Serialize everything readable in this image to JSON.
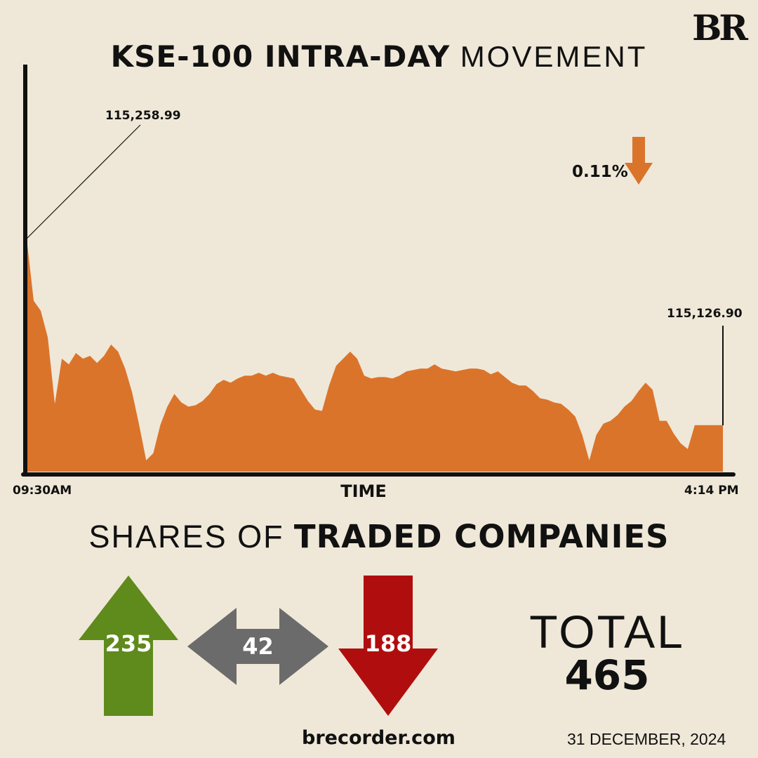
{
  "header": {
    "title_bold": "KSE-100 INTRA-DAY",
    "title_light": "MOVEMENT",
    "logo": "BR"
  },
  "chart_data": {
    "type": "area",
    "title": "KSE-100 INTRA-DAY MOVEMENT",
    "xlabel": "TIME",
    "ylabel": "",
    "x_start_label": "09:30AM",
    "x_end_label": "4:14 PM",
    "ylim": [
      115094,
      115258.99
    ],
    "high_label": "115,258.99",
    "close_label": "115,126.90",
    "change_label": "0.11%",
    "change_direction": "down",
    "grid": false,
    "values": [
      115258.99,
      115215,
      115208,
      115189,
      115142,
      115174,
      115170,
      115178,
      115174,
      115176,
      115171,
      115176,
      115184,
      115179,
      115167,
      115150,
      115127,
      115102,
      115107,
      115127,
      115140,
      115149,
      115143,
      115140,
      115141,
      115144,
      115149,
      115156,
      115159,
      115157,
      115160,
      115162,
      115162,
      115164,
      115162,
      115164,
      115162,
      115161,
      115160,
      115152,
      115144,
      115138,
      115137,
      115155,
      115169,
      115174,
      115179,
      115174,
      115162,
      115160,
      115161,
      115161,
      115160,
      115162,
      115165,
      115166,
      115167,
      115167,
      115170,
      115167,
      115166,
      115165,
      115166,
      115167,
      115167,
      115166,
      115163,
      115165,
      115161,
      115157,
      115155,
      115155,
      115151,
      115146,
      115145,
      115143,
      115142,
      115138,
      115133,
      115120,
      115102,
      115120,
      115128,
      115130,
      115134,
      115140,
      115144,
      115151,
      115157,
      115152,
      115130,
      115130,
      115121,
      115114,
      115110,
      115126.9,
      115126.9,
      115126.9,
      115126.9,
      115126.9
    ],
    "colors": {
      "area": "#db742b",
      "axis": "#111111",
      "arrow": "#db742b"
    }
  },
  "shares": {
    "heading_light": "SHARES OF",
    "heading_bold": "TRADED COMPANIES",
    "advanced": 235,
    "unchanged": 42,
    "declined": 188,
    "total_label": "TOTAL",
    "total": 465,
    "colors": {
      "up": "#5f8a1c",
      "same": "#6b6b6b",
      "down": "#b00e0e"
    }
  },
  "footer": {
    "site": "brecorder.com",
    "date": "31 DECEMBER, 2024"
  }
}
